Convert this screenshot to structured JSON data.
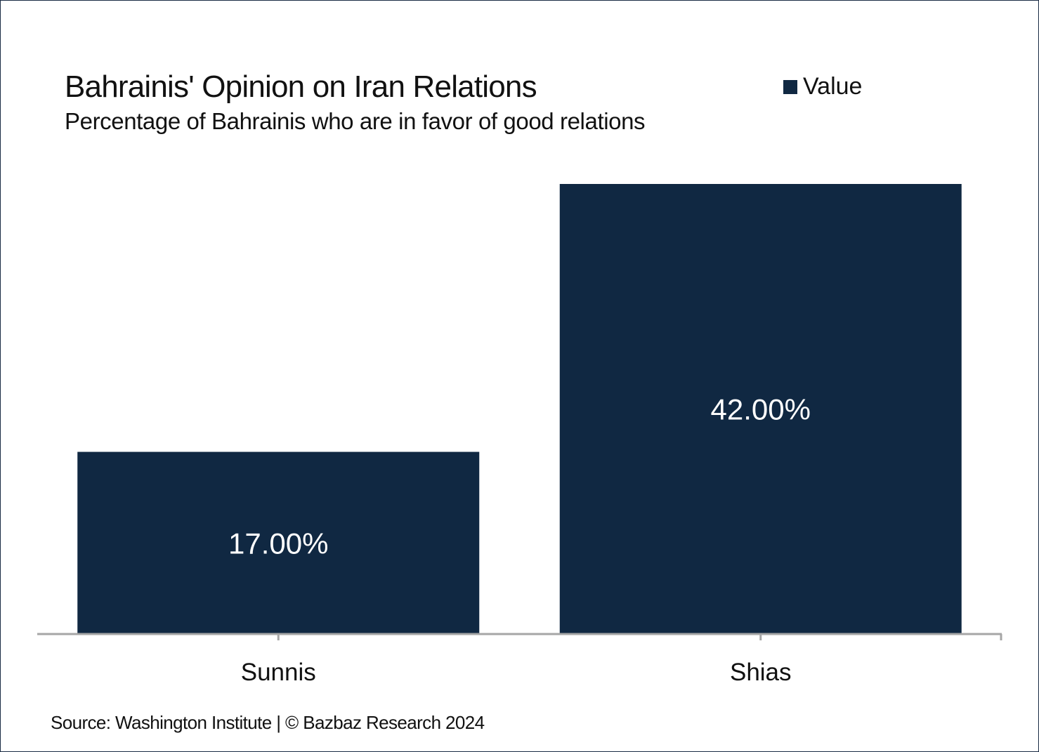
{
  "header": {
    "title": "Bahrainis' Opinion on Iran Relations",
    "subtitle": "Percentage of Bahrainis who are in favor of good relations"
  },
  "legend": {
    "label": "Value",
    "color": "#102842"
  },
  "footer": {
    "source": "Source: Washington Institute | © Bazbaz Research 2024"
  },
  "chart_data": {
    "type": "bar",
    "title": "Bahrainis' Opinion on Iran Relations",
    "subtitle": "Percentage of Bahrainis who are in favor of good relations",
    "categories": [
      "Sunnis",
      "Shias"
    ],
    "series": [
      {
        "name": "Value",
        "values": [
          17.0,
          42.0
        ],
        "color": "#102842"
      }
    ],
    "data_labels": [
      "17.00%",
      "42.00%"
    ],
    "ylim": [
      0,
      42
    ],
    "grid": false,
    "legend_position": "top-right",
    "axis_color": "#a6a6a6"
  }
}
